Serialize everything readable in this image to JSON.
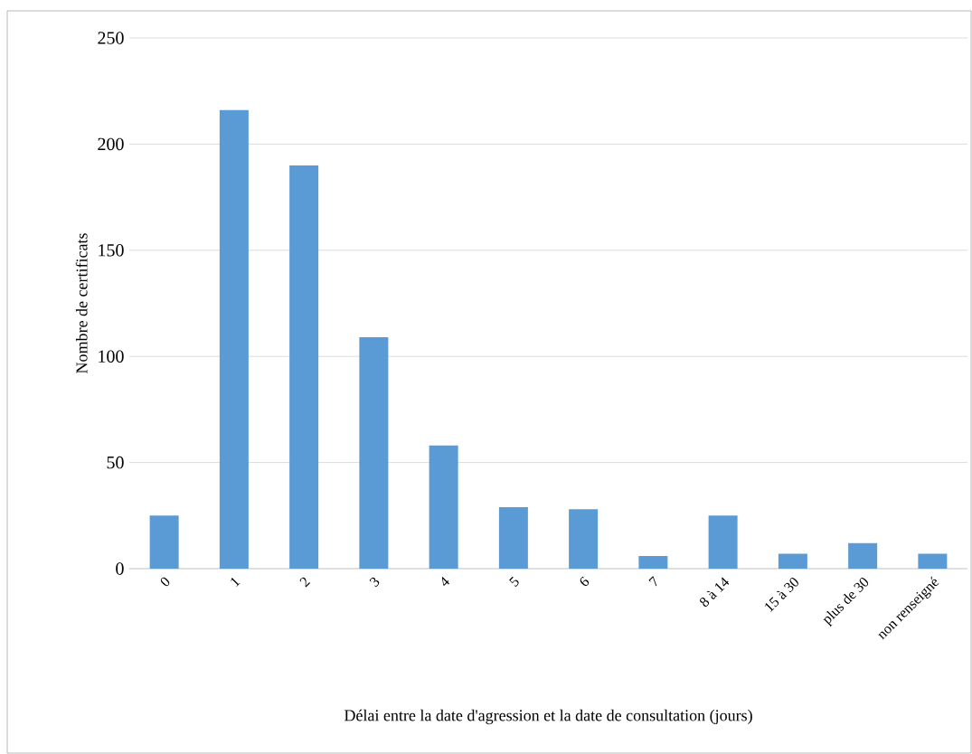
{
  "chart_data": {
    "type": "bar",
    "xlabel": "Délai entre la date d'agression et la date de consultation (jours)",
    "ylabel": "Nombre de certificats",
    "categories": [
      "0",
      "1",
      "2",
      "3",
      "4",
      "5",
      "6",
      "7",
      "8 à 14",
      "15 à 30",
      "plus de 30",
      "non renseigné"
    ],
    "values": [
      25,
      216,
      190,
      109,
      58,
      29,
      28,
      6,
      25,
      7,
      12,
      7
    ],
    "color": "#5b9bd5",
    "ylim": [
      0,
      250
    ],
    "yticks": [
      0,
      50,
      100,
      150,
      200,
      250
    ],
    "grid": "y"
  }
}
